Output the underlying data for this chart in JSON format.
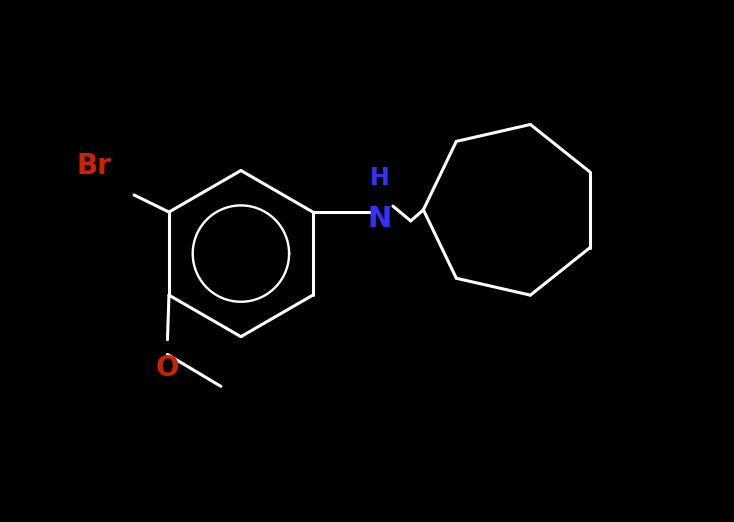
{
  "background_color": "#000000",
  "bond_color": "#ffffff",
  "br_color": "#cc2200",
  "nh_color": "#3333ff",
  "o_color": "#cc2200",
  "bond_width": 2.2,
  "font_size_br": 20,
  "font_size_nh": 20,
  "font_size_o": 20,
  "figsize": [
    7.34,
    5.22
  ],
  "dpi": 100,
  "xlim": [
    -3.2,
    6.0
  ],
  "ylim": [
    -3.5,
    3.5
  ]
}
